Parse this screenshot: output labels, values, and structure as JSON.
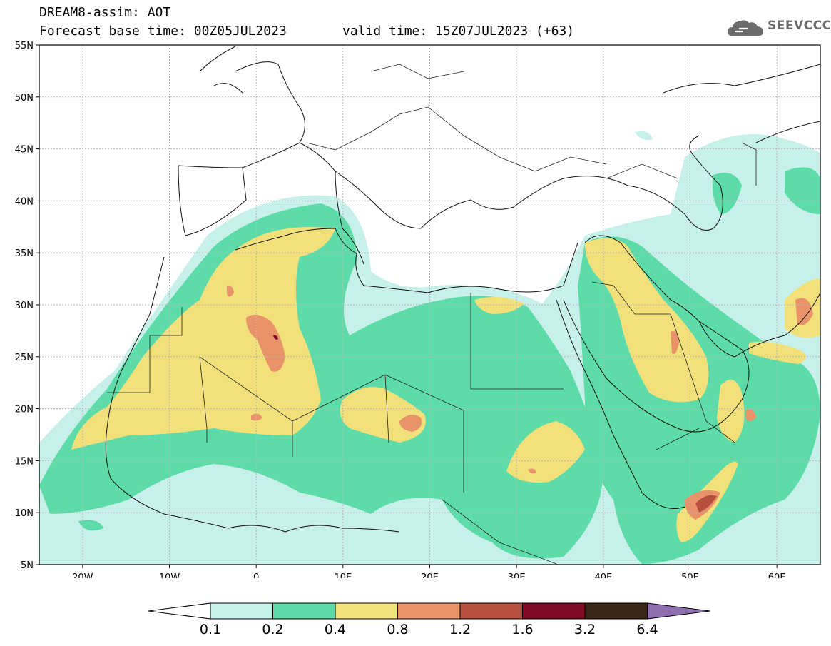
{
  "header": {
    "line1": "DREAM8-assim: AOT",
    "line2": "Forecast base time: 00Z05JUL2023",
    "line3": "valid time: 15Z07JUL2023 (+63)"
  },
  "logo": {
    "text": "SEEVCCC",
    "icon": "cloud-icon",
    "color": "#6b6b6b"
  },
  "axes": {
    "lat_ticks": [
      "55N",
      "50N",
      "45N",
      "40N",
      "35N",
      "30N",
      "25N",
      "20N",
      "15N",
      "10N",
      "5N"
    ],
    "lon_ticks": [
      "20W",
      "10W",
      "0",
      "10E",
      "20E",
      "30E",
      "40E",
      "50E",
      "60E"
    ],
    "lon_range": [
      -25,
      65
    ],
    "lat_range": [
      5,
      55
    ],
    "grid": true
  },
  "colorbar": {
    "labels": [
      "0.1",
      "0.2",
      "0.4",
      "0.8",
      "1.2",
      "1.6",
      "3.2",
      "6.4"
    ],
    "colors": [
      "#c8f0ea",
      "#5ddcaa",
      "#f2e07a",
      "#e8936a",
      "#b5503f",
      "#7d0a22",
      "#3a2616"
    ],
    "under_color": "#ffffff",
    "over_color": "#8f6fb0"
  }
}
